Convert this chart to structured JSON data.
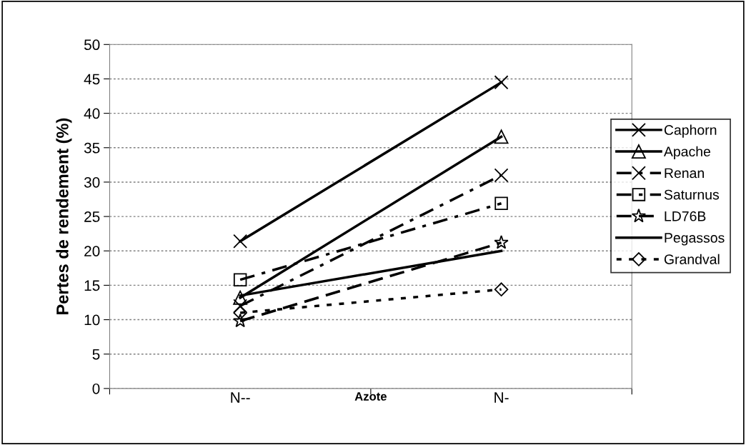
{
  "chart_data": {
    "type": "line",
    "xlabel": "Azote",
    "ylabel": "Pertes de rendement (%)",
    "categories": [
      "N--",
      "N-"
    ],
    "ylim": [
      0,
      50
    ],
    "yticks": [
      0,
      5,
      10,
      15,
      20,
      25,
      30,
      35,
      40,
      45,
      50
    ],
    "grid": "y",
    "legend": "right",
    "series": [
      {
        "name": "Caphorn",
        "color": "#000000",
        "values": [
          21.4,
          44.5
        ],
        "marker": "cross",
        "line_style": "solid"
      },
      {
        "name": "Apache",
        "color": "#000000",
        "values": [
          13.2,
          36.6
        ],
        "marker": "triangle",
        "line_style": "solid"
      },
      {
        "name": "Renan",
        "color": "#000000",
        "values": [
          12.0,
          31.0
        ],
        "marker": "cross",
        "line_style": "dashdot"
      },
      {
        "name": "Saturnus",
        "color": "#000000",
        "values": [
          15.8,
          26.9
        ],
        "marker": "square",
        "line_style": "dashdot"
      },
      {
        "name": "LD76B",
        "color": "#000000",
        "values": [
          9.8,
          21.2
        ],
        "marker": "star",
        "line_style": "dashed"
      },
      {
        "name": "Pegassos",
        "color": "#000000",
        "values": [
          13.5,
          20.0
        ],
        "marker": "none",
        "line_style": "solid"
      },
      {
        "name": "Grandval",
        "color": "#000000",
        "values": [
          11.0,
          14.4
        ],
        "marker": "diamond",
        "line_style": "dotted"
      }
    ]
  }
}
